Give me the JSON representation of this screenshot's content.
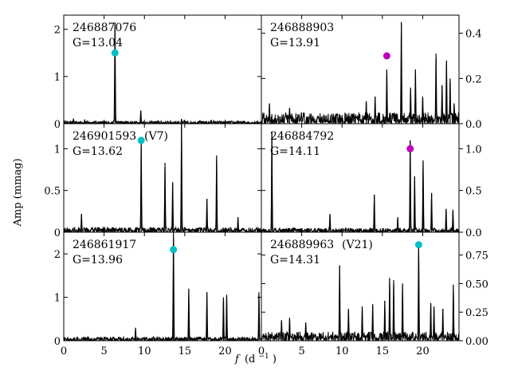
{
  "chart_data": {
    "type": "line",
    "title": "",
    "xlabel": "f (d⁻¹)",
    "xlabel_main": "f",
    "xlabel_unit": "(d",
    "xlabel_sup": "−1",
    "xlabel_close": ")",
    "ylabel": "Amp (mmag)",
    "xlim": [
      0,
      24.5
    ],
    "xticks": [
      0,
      5,
      10,
      15,
      20
    ],
    "panels": [
      {
        "id": "246887076",
        "grade": "G=13.04",
        "tag": "",
        "column": "left",
        "row": 0,
        "ylim": [
          0,
          2.3
        ],
        "yticks": [
          0,
          1,
          2
        ],
        "ytick_side": "left",
        "noise_level": 0.06,
        "peaks": [
          [
            1.2,
            0.1
          ],
          [
            2.6,
            0.08
          ],
          [
            6.35,
            2.15
          ],
          [
            9.55,
            0.28
          ],
          [
            14.6,
            0.1
          ],
          [
            18.3,
            0.07
          ]
        ],
        "marker": {
          "x": 6.35,
          "y": 1.5,
          "color": "#00bfc4"
        }
      },
      {
        "id": "246888903",
        "grade": "G=13.91",
        "tag": "",
        "column": "right",
        "row": 0,
        "ylim": [
          0,
          0.48
        ],
        "yticks": [
          0,
          0.2,
          0.4
        ],
        "ytick_side": "right",
        "noise_level": 0.05,
        "peaks": [
          [
            1.0,
            0.09
          ],
          [
            3.5,
            0.07
          ],
          [
            13.0,
            0.1
          ],
          [
            14.1,
            0.12
          ],
          [
            15.55,
            0.24
          ],
          [
            17.35,
            0.45
          ],
          [
            18.5,
            0.16
          ],
          [
            19.1,
            0.24
          ],
          [
            20.0,
            0.12
          ],
          [
            21.65,
            0.31
          ],
          [
            22.4,
            0.17
          ],
          [
            22.95,
            0.28
          ],
          [
            23.4,
            0.2
          ],
          [
            23.9,
            0.09
          ]
        ],
        "marker": {
          "x": 15.55,
          "y": 0.3,
          "color": "#c000c0"
        }
      },
      {
        "id": "246901593",
        "grade": "G=13.62",
        "tag": "(V7)",
        "column": "left",
        "row": 1,
        "ylim": [
          0,
          1.3
        ],
        "yticks": [
          0,
          0.5,
          1.0
        ],
        "ytick_side": "left",
        "noise_level": 0.06,
        "peaks": [
          [
            2.2,
            0.22
          ],
          [
            9.6,
            1.1
          ],
          [
            12.55,
            0.83
          ],
          [
            13.5,
            0.6
          ],
          [
            14.6,
            1.3
          ],
          [
            17.75,
            0.4
          ],
          [
            18.95,
            0.92
          ],
          [
            21.6,
            0.18
          ]
        ],
        "marker": {
          "x": 9.6,
          "y": 1.1,
          "color": "#00bfc4"
        }
      },
      {
        "id": "246884792",
        "grade": "G=14.11",
        "tag": "",
        "column": "right",
        "row": 1,
        "ylim": [
          0,
          1.3
        ],
        "yticks": [
          0,
          0.5,
          1.0
        ],
        "ytick_side": "right",
        "noise_level": 0.05,
        "peaks": [
          [
            1.3,
            1.2
          ],
          [
            8.5,
            0.22
          ],
          [
            14.0,
            0.45
          ],
          [
            16.9,
            0.18
          ],
          [
            18.45,
            1.1
          ],
          [
            19.0,
            0.67
          ],
          [
            20.05,
            0.86
          ],
          [
            21.1,
            0.47
          ],
          [
            22.9,
            0.28
          ],
          [
            23.75,
            0.27
          ]
        ],
        "marker": {
          "x": 18.45,
          "y": 1.0,
          "color": "#c000c0"
        }
      },
      {
        "id": "246861917",
        "grade": "G=13.96",
        "tag": "",
        "column": "left",
        "row": 2,
        "ylim": [
          0,
          2.5
        ],
        "yticks": [
          0,
          1,
          2
        ],
        "ytick_side": "left",
        "noise_level": 0.09,
        "peaks": [
          [
            8.9,
            0.3
          ],
          [
            13.6,
            2.5
          ],
          [
            15.5,
            1.2
          ],
          [
            17.75,
            1.12
          ],
          [
            19.8,
            1.0
          ],
          [
            20.2,
            1.06
          ],
          [
            24.2,
            1.12
          ]
        ],
        "marker": {
          "x": 13.6,
          "y": 2.1,
          "color": "#00bfc4"
        }
      },
      {
        "id": "246889963",
        "grade": "G=14.31",
        "tag": "(V21)",
        "column": "right",
        "row": 2,
        "ylim": [
          0,
          0.95
        ],
        "yticks": [
          0,
          0.25,
          0.5,
          0.75
        ],
        "ytick_side": "right",
        "noise_level": 0.08,
        "peaks": [
          [
            2.5,
            0.18
          ],
          [
            3.5,
            0.2
          ],
          [
            5.5,
            0.16
          ],
          [
            9.7,
            0.66
          ],
          [
            10.8,
            0.28
          ],
          [
            12.5,
            0.3
          ],
          [
            13.8,
            0.32
          ],
          [
            15.3,
            0.35
          ],
          [
            15.9,
            0.55
          ],
          [
            16.4,
            0.53
          ],
          [
            17.5,
            0.5
          ],
          [
            19.5,
            0.85
          ],
          [
            21.0,
            0.33
          ],
          [
            21.4,
            0.3
          ],
          [
            22.5,
            0.28
          ],
          [
            23.8,
            0.49
          ]
        ],
        "marker": {
          "x": 19.5,
          "y": 0.84,
          "color": "#00bfc4"
        }
      }
    ]
  }
}
